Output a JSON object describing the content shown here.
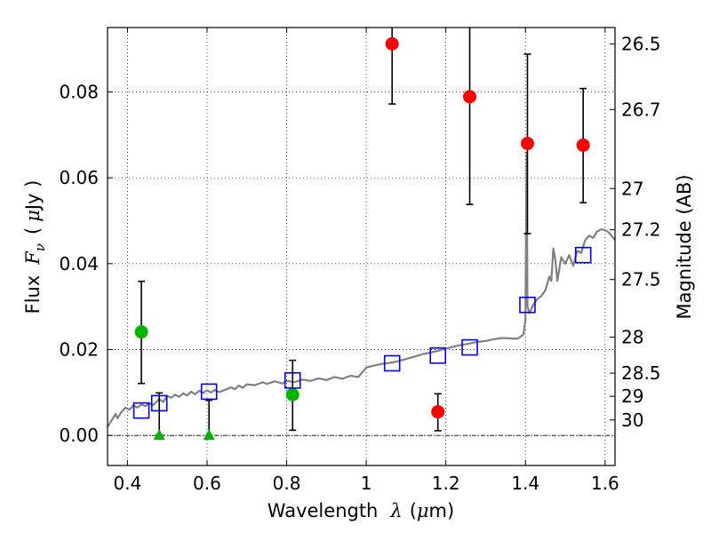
{
  "chart_data": {
    "type": "scatter",
    "xlabel_prefix": "Wavelength",
    "xlabel_symbol": "λ",
    "xlabel_unit_open": "(",
    "xlabel_unit_mu": "μ",
    "xlabel_unit_close": "m)",
    "ylabel_prefix": "Flux",
    "ylabel_symbol": "F",
    "ylabel_subscript": "ν",
    "ylabel_unit_open": "(",
    "ylabel_unit_mu": "μ",
    "ylabel_unit_close": "Jy )",
    "y2label": "Magnitude (AB)",
    "xlim": [
      0.35,
      1.625
    ],
    "ylim": [
      -0.007,
      0.095
    ],
    "grid": true,
    "x_ticks": [
      {
        "value": 0.4,
        "label": "0.4"
      },
      {
        "value": 0.6,
        "label": "0.6"
      },
      {
        "value": 0.8,
        "label": "0.8"
      },
      {
        "value": 1.0,
        "label": "1"
      },
      {
        "value": 1.2,
        "label": "1.2"
      },
      {
        "value": 1.4,
        "label": "1.4"
      },
      {
        "value": 1.6,
        "label": "1.6"
      }
    ],
    "y_ticks": [
      {
        "value": 0.0,
        "label": "0.00"
      },
      {
        "value": 0.02,
        "label": "0.02"
      },
      {
        "value": 0.04,
        "label": "0.04"
      },
      {
        "value": 0.06,
        "label": "0.06"
      },
      {
        "value": 0.08,
        "label": "0.08"
      }
    ],
    "y2_ticks": [
      {
        "flux": 0.0912,
        "label": "26.5"
      },
      {
        "flux": 0.0759,
        "label": "26.7"
      },
      {
        "flux": 0.0575,
        "label": "27"
      },
      {
        "flux": 0.0479,
        "label": "27.2"
      },
      {
        "flux": 0.0363,
        "label": "27.5"
      },
      {
        "flux": 0.0229,
        "label": "28"
      },
      {
        "flux": 0.0145,
        "label": "28.5"
      },
      {
        "flux": 0.0091,
        "label": "29"
      },
      {
        "flux": 0.0036,
        "label": "30"
      }
    ],
    "colors": {
      "sed": "#808080",
      "red": "#ff0000",
      "green": "#00b400",
      "blue": "#0000ff",
      "errorbar": "#000000",
      "zero_line": "#000000"
    },
    "sed_curve": [
      [
        0.35,
        0.002
      ],
      [
        0.36,
        0.0035
      ],
      [
        0.37,
        0.005
      ],
      [
        0.375,
        0.004
      ],
      [
        0.385,
        0.0055
      ],
      [
        0.395,
        0.0065
      ],
      [
        0.405,
        0.006
      ],
      [
        0.415,
        0.007
      ],
      [
        0.425,
        0.0065
      ],
      [
        0.435,
        0.0072
      ],
      [
        0.445,
        0.0068
      ],
      [
        0.455,
        0.0075
      ],
      [
        0.465,
        0.0071
      ],
      [
        0.48,
        0.0085
      ],
      [
        0.49,
        0.0078
      ],
      [
        0.5,
        0.0092
      ],
      [
        0.51,
        0.0088
      ],
      [
        0.52,
        0.0095
      ],
      [
        0.53,
        0.009
      ],
      [
        0.54,
        0.0098
      ],
      [
        0.55,
        0.0093
      ],
      [
        0.56,
        0.0102
      ],
      [
        0.57,
        0.0096
      ],
      [
        0.58,
        0.0104
      ],
      [
        0.59,
        0.0099
      ],
      [
        0.6,
        0.0105
      ],
      [
        0.61,
        0.01
      ],
      [
        0.62,
        0.0106
      ],
      [
        0.63,
        0.0101
      ],
      [
        0.65,
        0.0108
      ],
      [
        0.66,
        0.0112
      ],
      [
        0.67,
        0.0108
      ],
      [
        0.68,
        0.0116
      ],
      [
        0.69,
        0.0111
      ],
      [
        0.7,
        0.0119
      ],
      [
        0.72,
        0.0117
      ],
      [
        0.74,
        0.0124
      ],
      [
        0.75,
        0.012
      ],
      [
        0.77,
        0.0126
      ],
      [
        0.79,
        0.0121
      ],
      [
        0.8,
        0.0127
      ],
      [
        0.82,
        0.0124
      ],
      [
        0.84,
        0.013
      ],
      [
        0.86,
        0.0127
      ],
      [
        0.88,
        0.0133
      ],
      [
        0.9,
        0.0129
      ],
      [
        0.92,
        0.0136
      ],
      [
        0.94,
        0.0132
      ],
      [
        0.96,
        0.0139
      ],
      [
        0.98,
        0.0136
      ],
      [
        1.0,
        0.0158
      ],
      [
        1.02,
        0.0163
      ],
      [
        1.04,
        0.0167
      ],
      [
        1.06,
        0.0169
      ],
      [
        1.08,
        0.0173
      ],
      [
        1.1,
        0.0178
      ],
      [
        1.12,
        0.0183
      ],
      [
        1.14,
        0.0189
      ],
      [
        1.16,
        0.0193
      ],
      [
        1.18,
        0.0197
      ],
      [
        1.2,
        0.0202
      ],
      [
        1.22,
        0.0207
      ],
      [
        1.24,
        0.0211
      ],
      [
        1.26,
        0.0214
      ],
      [
        1.28,
        0.0218
      ],
      [
        1.3,
        0.022
      ],
      [
        1.32,
        0.0224
      ],
      [
        1.34,
        0.0227
      ],
      [
        1.36,
        0.0226
      ],
      [
        1.38,
        0.0225
      ],
      [
        1.395,
        0.0235
      ],
      [
        1.4,
        0.027
      ],
      [
        1.403,
        0.066
      ],
      [
        1.405,
        0.03
      ],
      [
        1.41,
        0.0285
      ],
      [
        1.42,
        0.0305
      ],
      [
        1.43,
        0.0318
      ],
      [
        1.44,
        0.0325
      ],
      [
        1.45,
        0.0338
      ],
      [
        1.46,
        0.037
      ],
      [
        1.465,
        0.036
      ],
      [
        1.47,
        0.0435
      ],
      [
        1.475,
        0.041
      ],
      [
        1.48,
        0.036
      ],
      [
        1.49,
        0.0415
      ],
      [
        1.5,
        0.04
      ],
      [
        1.51,
        0.042
      ],
      [
        1.52,
        0.0395
      ],
      [
        1.53,
        0.043
      ],
      [
        1.54,
        0.0425
      ],
      [
        1.55,
        0.0455
      ],
      [
        1.56,
        0.0465
      ],
      [
        1.57,
        0.046
      ],
      [
        1.58,
        0.0475
      ],
      [
        1.59,
        0.048
      ],
      [
        1.6,
        0.0478
      ],
      [
        1.61,
        0.0472
      ],
      [
        1.625,
        0.0455
      ]
    ],
    "series": [
      {
        "name": "red detections",
        "marker": "circle",
        "color": "red",
        "points": [
          {
            "x": 1.065,
            "y": 0.0912,
            "err_low": 0.0772,
            "err_high": 0.1
          },
          {
            "x": 1.26,
            "y": 0.0789,
            "err_low": 0.0538,
            "err_high": 0.1
          },
          {
            "x": 1.405,
            "y": 0.068,
            "err_low": 0.047,
            "err_high": 0.0888
          },
          {
            "x": 1.545,
            "y": 0.0676,
            "err_low": 0.0542,
            "err_high": 0.0808
          },
          {
            "x": 1.18,
            "y": 0.0055,
            "err_low": 0.0011,
            "err_high": 0.0097
          }
        ]
      },
      {
        "name": "green detections",
        "marker": "circle",
        "color": "green",
        "points": [
          {
            "x": 0.435,
            "y": 0.0241,
            "err_low": 0.0121,
            "err_high": 0.0359
          },
          {
            "x": 0.815,
            "y": 0.0095,
            "err_low": 0.0012,
            "err_high": 0.0175
          }
        ]
      },
      {
        "name": "green upper limits",
        "marker": "triangle",
        "color": "green",
        "points": [
          {
            "x": 0.48,
            "y": 0.0,
            "err_low": 0.0,
            "err_high": 0.0099
          },
          {
            "x": 0.605,
            "y": 0.0,
            "err_low": 0.0,
            "err_high": 0.0082
          }
        ]
      },
      {
        "name": "model photometry",
        "marker": "square",
        "color": "blue",
        "points": [
          {
            "x": 0.435,
            "y": 0.0058
          },
          {
            "x": 0.48,
            "y": 0.0075
          },
          {
            "x": 0.605,
            "y": 0.0102
          },
          {
            "x": 0.815,
            "y": 0.0128
          },
          {
            "x": 1.065,
            "y": 0.0168
          },
          {
            "x": 1.18,
            "y": 0.0186
          },
          {
            "x": 1.26,
            "y": 0.0205
          },
          {
            "x": 1.405,
            "y": 0.0304
          },
          {
            "x": 1.545,
            "y": 0.042
          }
        ]
      }
    ]
  }
}
